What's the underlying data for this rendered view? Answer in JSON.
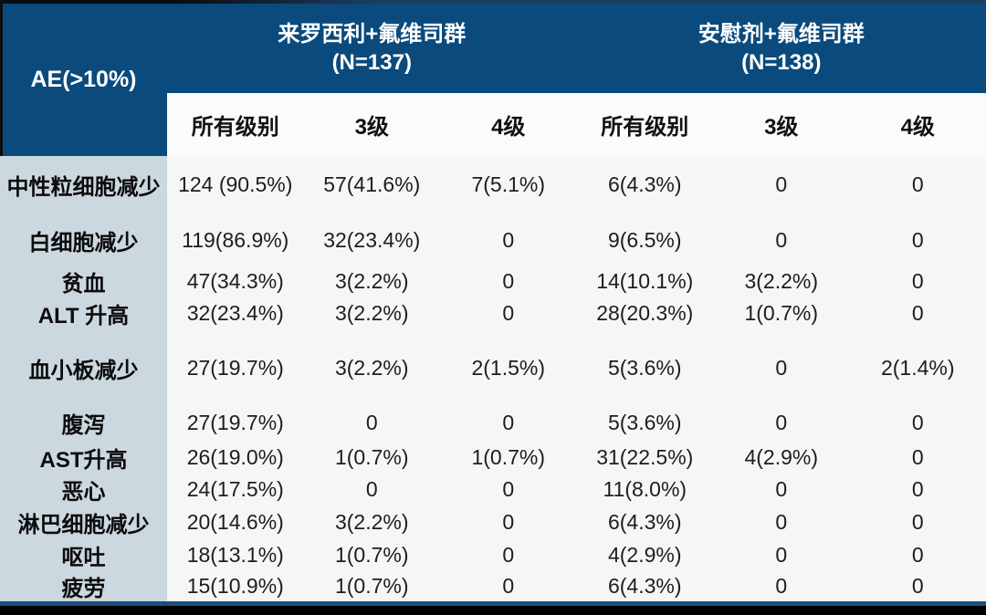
{
  "table": {
    "corner_label": "AE(>10%)",
    "groups": [
      {
        "title": "来罗西利+氟维司群",
        "n_label": "(N=137)"
      },
      {
        "title": "安慰剂+氟维司群",
        "n_label": "(N=138)"
      }
    ],
    "subheaders": [
      "所有级别",
      "3级",
      "4级",
      "所有级别",
      "3级",
      "4级"
    ],
    "rows": [
      {
        "label": "中性粒细胞减少",
        "cells": [
          "124 (90.5%)",
          "57(41.6%)",
          "7(5.1%)",
          "6(4.3%)",
          "0",
          "0"
        ]
      },
      {
        "label": "白细胞减少",
        "cells": [
          "119(86.9%)",
          "32(23.4%)",
          "0",
          "9(6.5%)",
          "0",
          "0"
        ]
      },
      {
        "label": "贫血",
        "cells": [
          "47(34.3%)",
          "3(2.2%)",
          "0",
          "14(10.1%)",
          "3(2.2%)",
          "0"
        ]
      },
      {
        "label": "ALT 升高",
        "cells": [
          "32(23.4%)",
          "3(2.2%)",
          "0",
          "28(20.3%)",
          "1(0.7%)",
          "0"
        ]
      },
      {
        "label": "血小板减少",
        "cells": [
          "27(19.7%)",
          "3(2.2%)",
          "2(1.5%)",
          "5(3.6%)",
          "0",
          "2(1.4%)"
        ]
      },
      {
        "label": "腹泻",
        "cells": [
          "27(19.7%)",
          "0",
          "0",
          "5(3.6%)",
          "0",
          "0"
        ]
      },
      {
        "label": "AST升高",
        "cells": [
          "26(19.0%)",
          "1(0.7%)",
          "1(0.7%)",
          "31(22.5%)",
          "4(2.9%)",
          "0"
        ]
      },
      {
        "label": "恶心",
        "cells": [
          "24(17.5%)",
          "0",
          "0",
          "11(8.0%)",
          "0",
          "0"
        ]
      },
      {
        "label": "淋巴细胞减少",
        "cells": [
          "20(14.6%)",
          "3(2.2%)",
          "0",
          "6(4.3%)",
          "0",
          "0"
        ]
      },
      {
        "label": "呕吐",
        "cells": [
          "18(13.1%)",
          "1(0.7%)",
          "0",
          "4(2.9%)",
          "0",
          "0"
        ]
      },
      {
        "label": "疲劳",
        "cells": [
          "15(10.9%)",
          "1(0.7%)",
          "0",
          "6(4.3%)",
          "0",
          "0"
        ]
      }
    ]
  },
  "colors": {
    "header_blue": "#0a4a7c",
    "label_column_bg": "#ccd8e0",
    "data_bg": "#f5f6f7",
    "subheader_bg": "#fbfbfc",
    "bottom_line_blue": "#1d4e7d",
    "bottom_bar_black": "#010101"
  }
}
